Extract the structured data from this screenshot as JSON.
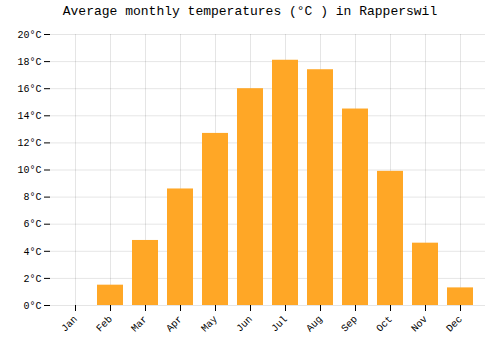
{
  "chart_data": {
    "type": "bar",
    "title": "Average monthly temperatures (°C ) in Rapperswil",
    "categories": [
      "Jan",
      "Feb",
      "Mar",
      "Apr",
      "May",
      "Jun",
      "Jul",
      "Aug",
      "Sep",
      "Oct",
      "Nov",
      "Dec"
    ],
    "values": [
      0.0,
      1.5,
      4.8,
      8.6,
      12.7,
      16.0,
      18.1,
      17.4,
      14.5,
      9.9,
      4.6,
      1.3
    ],
    "color": "#FFA726",
    "ylim": [
      0,
      20
    ],
    "yticks": [
      {
        "value": 0,
        "label": "0°C"
      },
      {
        "value": 2,
        "label": "2°C"
      },
      {
        "value": 4,
        "label": "4°C"
      },
      {
        "value": 6,
        "label": "6°C"
      },
      {
        "value": 8,
        "label": "8°C"
      },
      {
        "value": 10,
        "label": "10°C"
      },
      {
        "value": 12,
        "label": "12°C"
      },
      {
        "value": 14,
        "label": "14°C"
      },
      {
        "value": 16,
        "label": "16°C"
      },
      {
        "value": 18,
        "label": "18°C"
      },
      {
        "value": 20,
        "label": "20°C"
      }
    ],
    "grid": true
  }
}
